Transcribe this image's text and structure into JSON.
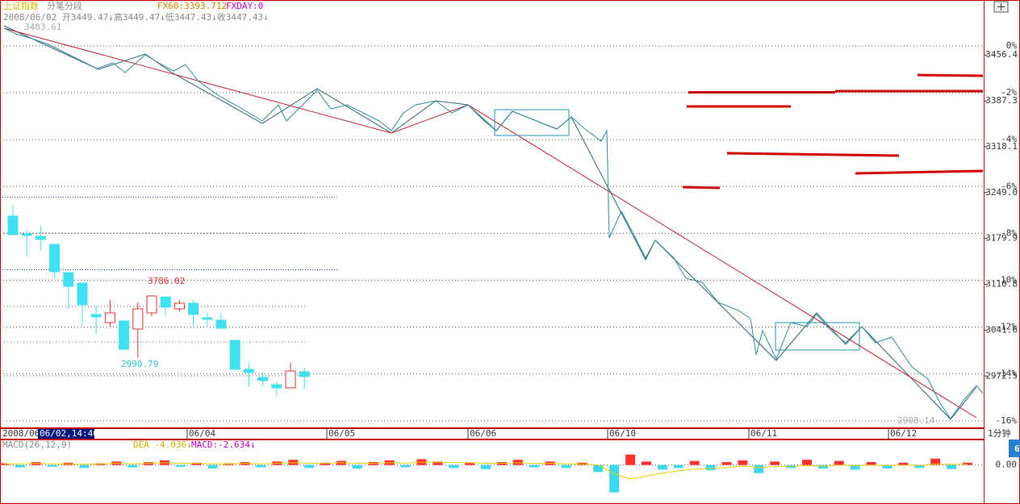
{
  "chart_data": [
    {
      "type": "line",
      "title": "上证指数",
      "subtitle": "分笔分段",
      "annotations": [
        "FX60:3393.712",
        "FXDAY:0",
        "2008/06/02 开3449.47↓高3449.47↓低3447.43↓收3447.43↓",
        "3483.61",
        "2908.14"
      ],
      "date_label": "2008/06",
      "cursor_label": "06/02,14:46",
      "period": "1分钟",
      "color": "#2e8b9a",
      "x": [
        5,
        20,
        40,
        60,
        80,
        100,
        120,
        140,
        155,
        180,
        200,
        215,
        230,
        245,
        270,
        300,
        325,
        345,
        355,
        375,
        393,
        410,
        430,
        450,
        470,
        485,
        500,
        515,
        540,
        560,
        580,
        600,
        615,
        635,
        660,
        690,
        708,
        725,
        745,
        752,
        755,
        770,
        785,
        800,
        812,
        835,
        850,
        870,
        890,
        915,
        930,
        937,
        945,
        962,
        980,
        1000,
        1012,
        1030,
        1048,
        1068,
        1085,
        1105,
        1130,
        1150,
        1165,
        1178,
        1195,
        1210,
        1218
      ],
      "values": [
        3496.8,
        3488.3,
        3481.0,
        3472.5,
        3460.3,
        3448.1,
        3436.0,
        3444.5,
        3429.9,
        3456.7,
        3442.1,
        3432.3,
        3442.1,
        3417.8,
        3395.9,
        3375.2,
        3357.0,
        3381.3,
        3357.0,
        3381.3,
        3403.2,
        3375.2,
        3381.3,
        3369.1,
        3357.0,
        3342.4,
        3369.1,
        3381.3,
        3387.4,
        3369.1,
        3381.3,
        3357.0,
        3342.4,
        3371.6,
        3359.4,
        3344.8,
        3363.0,
        3344.8,
        3326.6,
        3342.4,
        3180.7,
        3220.8,
        3186.8,
        3150.3,
        3177.0,
        3150.3,
        3119.9,
        3113.8,
        3083.4,
        3071.3,
        3059.1,
        3004.4,
        3040.9,
        2998.3,
        3053.0,
        3047.0,
        3065.2,
        3040.9,
        3022.6,
        3047.0,
        3022.6,
        3031.2,
        2986.2,
        2967.9,
        2931.5,
        2908.14,
        2937.5,
        2958.2,
        2946.1
      ],
      "xlim": [
        0,
        1220
      ],
      "xticks": [
        {
          "value": 232,
          "label": "06/04"
        },
        {
          "value": 405,
          "label": "06/05"
        },
        {
          "value": 580,
          "label": "06/06"
        },
        {
          "value": 753,
          "label": "06/10"
        },
        {
          "value": 928,
          "label": "06/11"
        },
        {
          "value": 1101,
          "label": "06/12"
        }
      ],
      "ylim": [
        2895,
        3515
      ],
      "yticks": [
        3456.4,
        3387.3,
        3318.1,
        {
          "value": 3249,
          "label": "3249.0"
        },
        3179.9,
        3110.8,
        3041.6,
        2972.5
      ],
      "y2lim": [
        -16.28,
        1.27
      ],
      "y2ticks": [
        {
          "value": 0,
          "label": "0%"
        },
        {
          "value": -2,
          "label": "-2%"
        },
        {
          "value": -4,
          "label": "-4%"
        },
        {
          "value": -6,
          "label": "-6%"
        },
        {
          "value": -8,
          "label": "-8%"
        },
        {
          "value": -10,
          "label": "-10%"
        },
        {
          "value": -12,
          "label": "-12%"
        },
        {
          "value": -14,
          "label": "-14%"
        },
        {
          "value": -16,
          "label": "-16%"
        }
      ],
      "grid": true
    },
    {
      "type": "candlestick",
      "annotations": [
        "3786.02",
        "2990.79"
      ],
      "up_color": "#e03030",
      "down_color": "#40e0f0",
      "open": [
        4812.8,
        4584.0,
        4552.8,
        4448.8,
        4084.8,
        3949.6,
        3544.0,
        3440.0,
        3460.8,
        3356.8,
        3564.8,
        3770.0,
        3616.8,
        3689.6,
        3502.4,
        3471.2,
        3211.2,
        2836.8,
        2732.8,
        2639.2,
        2597.6,
        2805.6
      ],
      "high": [
        4948.0,
        4636.0,
        4688.0,
        4448.8,
        4084.8,
        3949.6,
        3648.0,
        3731.2,
        3460.8,
        3700.0,
        3786.02,
        3780.0,
        3731.2,
        3731.2,
        3564.8,
        3564.8,
        3211.2,
        2920.0,
        2795.2,
        2670.4,
        2920.0,
        2857.6
      ],
      "low": [
        4573.6,
        4292.8,
        4376.0,
        4012.0,
        3616.8,
        3398.4,
        3294.4,
        3377.6,
        3076.0,
        2990.79,
        3523.2,
        3530.0,
        3585.6,
        3398.4,
        3377.6,
        3367.2,
        2836.8,
        2608.0,
        2628.8,
        2493.6,
        2597.6,
        2576.8
      ],
      "close": [
        4573.6,
        4563.2,
        4511.2,
        4095.2,
        3908.0,
        3668.8,
        3512.8,
        3564.8,
        3096.8,
        3616.8,
        3783.2,
        3640.0,
        3689.6,
        3544.0,
        3481.6,
        3367.2,
        2836.8,
        2795.2,
        2691.2,
        2597.6,
        2816.0,
        2743.2
      ],
      "ylim": [
        2400,
        5000
      ]
    },
    {
      "type": "macd",
      "title": "MACD(26,12,9)",
      "annotations": [
        "DEA -4.036↓",
        "MACD:-2.634↓"
      ],
      "badge": "6",
      "up_color": "#ff3030",
      "down_color": "#40d8f0",
      "dea_color": "#e8d000",
      "values": [
        0.3,
        -0.4,
        0.5,
        -0.3,
        0.4,
        -0.5,
        0.3,
        0.6,
        -0.4,
        0.5,
        0.8,
        -0.3,
        0.4,
        -0.6,
        0.3,
        0.5,
        -0.4,
        0.6,
        0.9,
        -0.5,
        0.4,
        0.7,
        -0.6,
        0.5,
        0.8,
        -0.4,
        1.0,
        0.6,
        -0.5,
        0.4,
        -0.7,
        0.5,
        0.9,
        -0.4,
        0.6,
        -0.5,
        0.4,
        -1.2,
        -4.7,
        1.8,
        0.6,
        -0.8,
        -0.5,
        0.7,
        -0.9,
        0.5,
        0.8,
        -1.4,
        0.6,
        -0.5,
        0.9,
        -0.6,
        0.7,
        -0.8,
        0.5,
        -0.6,
        0.4,
        -0.5,
        1.1,
        -0.7,
        0.4
      ],
      "dea": [
        0.2,
        0.2,
        0.3,
        0.2,
        0.2,
        0.1,
        0.2,
        0.3,
        0.2,
        0.3,
        0.4,
        0.3,
        0.3,
        0.2,
        0.2,
        0.3,
        0.2,
        0.3,
        0.4,
        0.3,
        0.3,
        0.4,
        0.3,
        0.3,
        0.4,
        0.3,
        0.5,
        0.5,
        0.4,
        0.4,
        0.3,
        0.3,
        0.4,
        0.3,
        0.3,
        0.2,
        0.2,
        0.0,
        -1.5,
        -2.4,
        -1.9,
        -1.4,
        -1.0,
        -0.7,
        -0.6,
        -0.4,
        -0.2,
        -0.4,
        -0.3,
        -0.2,
        -0.1,
        -0.2,
        0.0,
        -0.1,
        0.0,
        -0.1,
        0.0,
        -0.1,
        0.2,
        0.1,
        0.1
      ],
      "ylim": [
        -6,
        3
      ],
      "yticks": [
        {
          "value": 0,
          "label": "0.00"
        }
      ]
    }
  ]
}
